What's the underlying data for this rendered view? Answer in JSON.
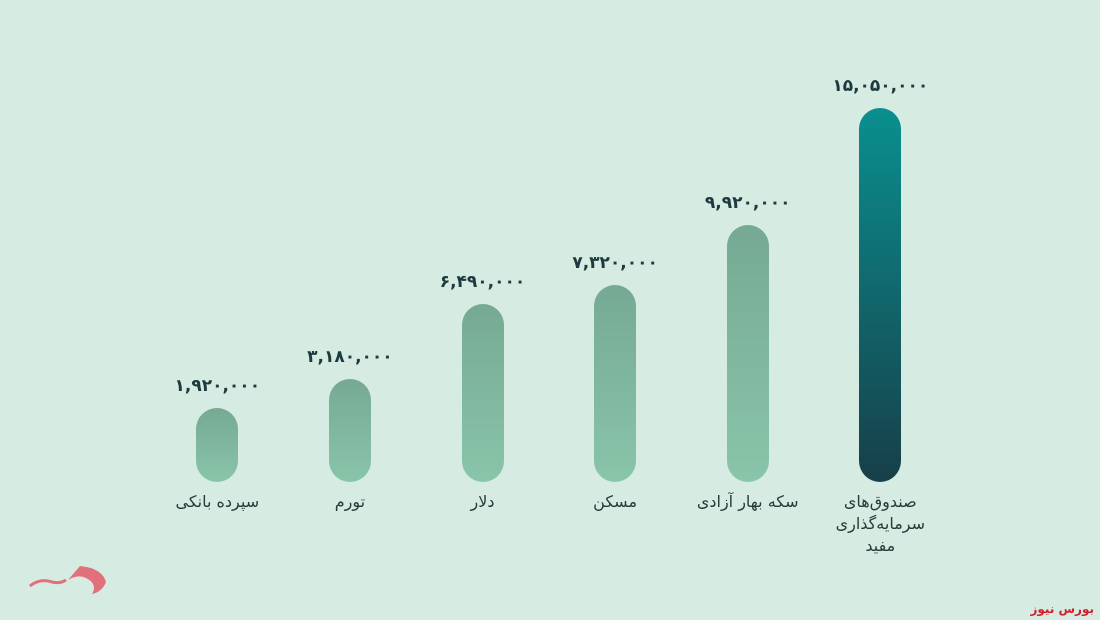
{
  "chart_data": {
    "type": "bar",
    "categories": [
      "سپرده بانکی",
      "تورم",
      "دلار",
      "مسکن",
      "سکه بهار آزادی",
      "صندوق‌های سرمایه‌گذاری مفید"
    ],
    "values": [
      1920000,
      3180000,
      6490000,
      7320000,
      9920000,
      15050000
    ],
    "value_labels": [
      "۱,۹۲۰,۰۰۰",
      "۳,۱۸۰,۰۰۰",
      "۶,۴۹۰,۰۰۰",
      "۷,۳۲۰,۰۰۰",
      "۹,۹۲۰,۰۰۰",
      "۱۵,۰۵۰,۰۰۰"
    ],
    "colors": [
      [
        "#76a993",
        "#89c5aa"
      ],
      [
        "#76a993",
        "#89c5aa"
      ],
      [
        "#76a993",
        "#89c5aa"
      ],
      [
        "#76a993",
        "#89c5aa"
      ],
      [
        "#76a993",
        "#89c5aa"
      ],
      [
        "#0a8f8f",
        "#173f49"
      ]
    ],
    "source": "بورس نیوز"
  }
}
